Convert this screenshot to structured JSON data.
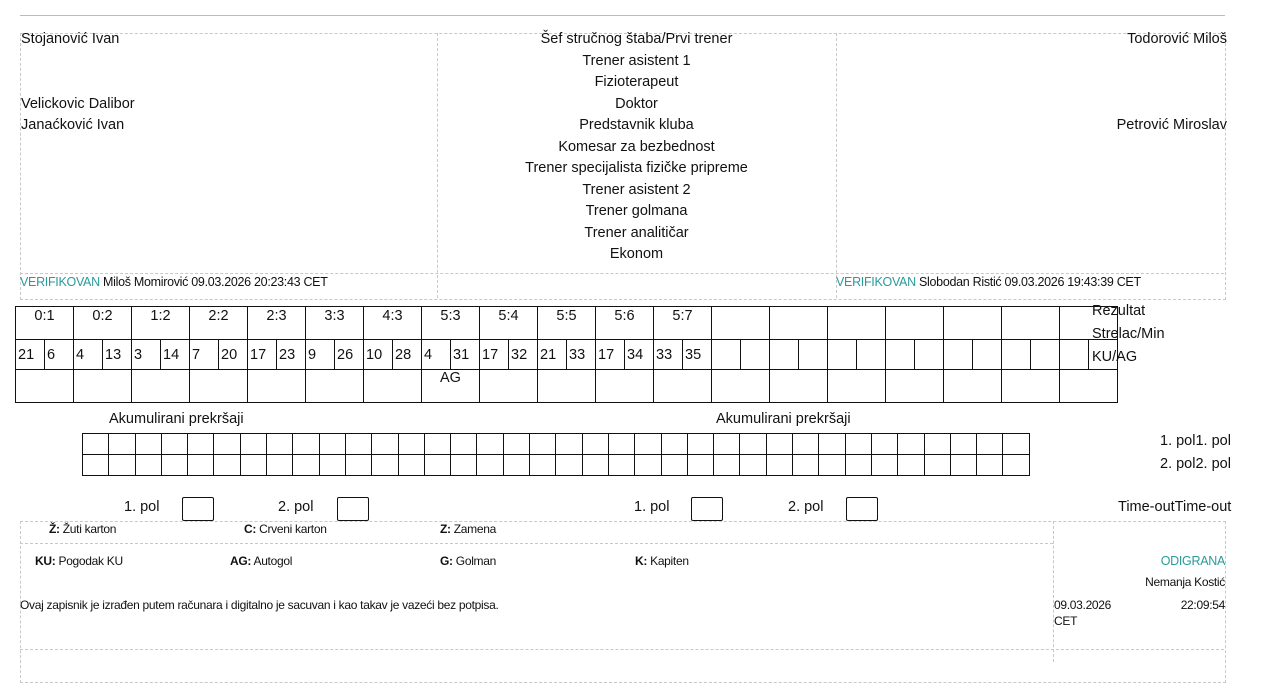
{
  "header": {
    "home_officials": [
      "Stojanović Ivan",
      "",
      "",
      "Velickovic Dalibor",
      "Janaćković Ivan"
    ],
    "roles": [
      "Šef stručnog štaba/Prvi trener",
      "Trener asistent 1",
      "Fizioterapeut",
      "Doktor",
      "Predstavnik kluba",
      "Komesar za bezbednost",
      "Trener specijalista fizičke pripreme",
      "Trener asistent 2",
      "Trener golmana",
      "Trener analitičar",
      "Ekonom"
    ],
    "away_officials": [
      "Todorović Miloš",
      "",
      "",
      "",
      "Petrović Miroslav"
    ],
    "home_verified": {
      "status": "VERIFIKOVAN",
      "text": "Miloš Momirović 09.03.2026 20:23:43 CET"
    },
    "away_verified": {
      "status": "VERIFIKOVAN",
      "text": "Slobodan Ristić 09.03.2026 19:43:39 CET"
    },
    "accent_color": "#2a9a9a"
  },
  "goals": {
    "row_labels": [
      "Rezultat",
      "Strelac/Min",
      "KU/AG"
    ],
    "entries": [
      {
        "score": "0:1",
        "player": "21",
        "min": "6",
        "type": ""
      },
      {
        "score": "0:2",
        "player": "4",
        "min": "13",
        "type": ""
      },
      {
        "score": "1:2",
        "player": "3",
        "min": "14",
        "type": ""
      },
      {
        "score": "2:2",
        "player": "7",
        "min": "20",
        "type": ""
      },
      {
        "score": "2:3",
        "player": "17",
        "min": "23",
        "type": ""
      },
      {
        "score": "3:3",
        "player": "9",
        "min": "26",
        "type": ""
      },
      {
        "score": "4:3",
        "player": "10",
        "min": "28",
        "type": ""
      },
      {
        "score": "5:3",
        "player": "4",
        "min": "31",
        "type": "AG"
      },
      {
        "score": "5:4",
        "player": "17",
        "min": "32",
        "type": ""
      },
      {
        "score": "5:5",
        "player": "21",
        "min": "33",
        "type": ""
      },
      {
        "score": "5:6",
        "player": "17",
        "min": "34",
        "type": ""
      },
      {
        "score": "5:7",
        "player": "33",
        "min": "35",
        "type": ""
      },
      {
        "score": "",
        "player": "",
        "min": "",
        "type": ""
      },
      {
        "score": "",
        "player": "",
        "min": "",
        "type": ""
      },
      {
        "score": "",
        "player": "",
        "min": "",
        "type": ""
      },
      {
        "score": "",
        "player": "",
        "min": "",
        "type": ""
      },
      {
        "score": "",
        "player": "",
        "min": "",
        "type": ""
      },
      {
        "score": "",
        "player": "",
        "min": "",
        "type": ""
      },
      {
        "score": "",
        "player": "",
        "min": "",
        "type": ""
      }
    ]
  },
  "fouls": {
    "home_title": "Akumulirani prekršaji",
    "away_title": "Akumulirani prekršaji",
    "row_labels": [
      "1. pol1. pol",
      "2. pol2. pol"
    ]
  },
  "timeouts": {
    "labels": [
      "1. pol",
      "2. pol",
      "1. pol",
      "2. pol"
    ],
    "title": "Time-outTime-out"
  },
  "legend": {
    "row1": [
      {
        "k": "Ž:",
        "v": "Žuti karton"
      },
      {
        "k": "C:",
        "v": "Crveni karton"
      },
      {
        "k": "Z:",
        "v": "Zamena"
      }
    ],
    "row2": [
      {
        "k": "KU:",
        "v": "Pogodak KU"
      },
      {
        "k": "AG:",
        "v": "Autogol"
      },
      {
        "k": "G:",
        "v": "Golman"
      },
      {
        "k": "K:",
        "v": "Kapiten"
      }
    ],
    "note": "Ovaj zapisnik je izrađen putem računara i digitalno je sacuvan i kao takav je vazeći bez potpisa.",
    "status": "ODIGRANA",
    "signed_by": "Nemanja Kostić",
    "date": "09.03.2026",
    "time": "22:09:54",
    "tz": "CET"
  }
}
